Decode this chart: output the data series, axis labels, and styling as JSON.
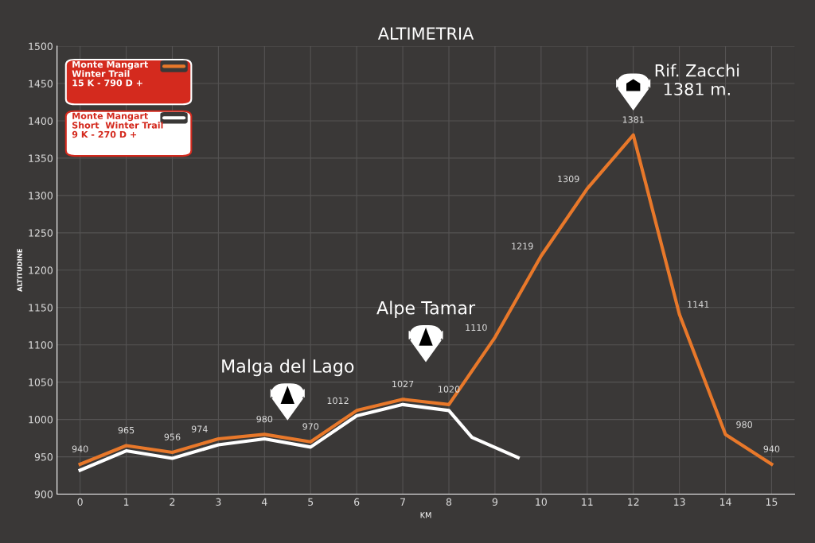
{
  "chart_data": {
    "type": "line",
    "title": "ALTIMETRIA",
    "xlabel": "KM",
    "ylabel": "ALTITUDINE",
    "x": [
      0,
      1,
      2,
      3,
      4,
      5,
      6,
      7,
      8,
      9,
      10,
      11,
      12,
      13,
      14,
      15
    ],
    "series": [
      {
        "name": "Monte Mangart\nWinter Trail\n15 K - 790 D +",
        "color": "#e8782a",
        "values": [
          940,
          965,
          956,
          974,
          980,
          970,
          1012,
          1027,
          1020,
          1110,
          1219,
          1309,
          1381,
          1141,
          980,
          940
        ],
        "value_labels": [
          "940",
          "965",
          "956",
          "974",
          "980",
          "970",
          "1012",
          "1027",
          "1020",
          "1110",
          "1219",
          "1309",
          "1381",
          "1141",
          "980",
          "940"
        ]
      },
      {
        "name": "Monte Mangart\nShort  Winter Trail\n9 K - 270 D +",
        "color": "#ffffff",
        "x": [
          0,
          1,
          2,
          3,
          4,
          5,
          6,
          7,
          8,
          8.5,
          9.5
        ],
        "values": [
          932,
          958,
          948,
          966,
          974,
          963,
          1005,
          1020,
          1012,
          976,
          949
        ]
      }
    ],
    "annotations": [
      "Malga del Lago",
      "Alpe Tamar",
      {
        "text": "Rif. Zacchi\n1381 m.",
        "x": 12,
        "y": 1381
      }
    ],
    "xlim": [
      -0.5,
      15.5
    ],
    "xticks": [
      0,
      1,
      2,
      3,
      4,
      5,
      6,
      7,
      8,
      9,
      10,
      11,
      12,
      13,
      14,
      15
    ],
    "ylim": [
      900,
      1500
    ],
    "yticks": [
      900,
      950,
      1000,
      1050,
      1100,
      1150,
      1200,
      1250,
      1300,
      1350,
      1400,
      1450,
      1500
    ],
    "grid": true,
    "legend": "top left",
    "marker": "none",
    "line_style": "solid"
  }
}
